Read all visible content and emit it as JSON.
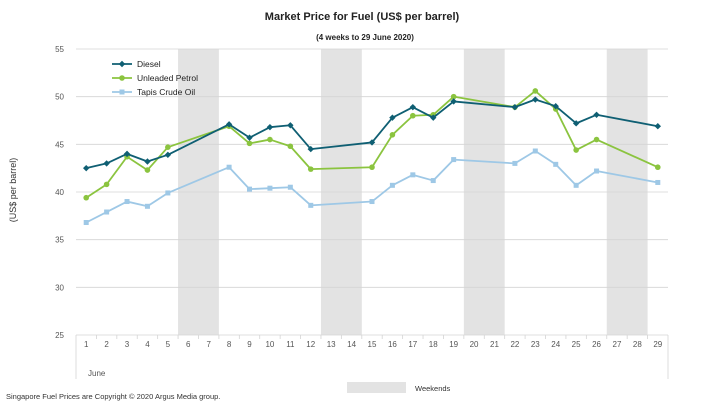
{
  "chart_data": {
    "type": "line",
    "title": "Market Price for Fuel (US$  per barrel)",
    "subtitle": "(4 weeks to 29 June 2020)",
    "ylabel": "(US$ per barrel)",
    "xlabel": "June",
    "ylim": [
      25,
      55
    ],
    "yticks": [
      25,
      30,
      35,
      40,
      45,
      50,
      55
    ],
    "categories": [
      "1",
      "2",
      "3",
      "4",
      "5",
      "6",
      "7",
      "8",
      "9",
      "10",
      "11",
      "12",
      "13",
      "14",
      "15",
      "16",
      "17",
      "18",
      "19",
      "20",
      "21",
      "22",
      "23",
      "24",
      "25",
      "26",
      "27",
      "28",
      "29"
    ],
    "weekends": [
      [
        6,
        7
      ],
      [
        13,
        14
      ],
      [
        20,
        21
      ],
      [
        27,
        28
      ]
    ],
    "weekend_label": "Weekends",
    "weekend_color": "#e3e3e3",
    "series": [
      {
        "name": "Diesel",
        "color": "#0f5f73",
        "marker": "diamond",
        "points": [
          [
            1,
            42.5
          ],
          [
            2,
            43.0
          ],
          [
            3,
            44.0
          ],
          [
            4,
            43.2
          ],
          [
            5,
            43.9
          ],
          [
            8,
            47.1
          ],
          [
            9,
            45.7
          ],
          [
            10,
            46.8
          ],
          [
            11,
            47.0
          ],
          [
            12,
            44.5
          ],
          [
            15,
            45.2
          ],
          [
            16,
            47.8
          ],
          [
            17,
            48.9
          ],
          [
            18,
            47.8
          ],
          [
            19,
            49.5
          ],
          [
            22,
            48.9
          ],
          [
            23,
            49.7
          ],
          [
            24,
            49.0
          ],
          [
            25,
            47.2
          ],
          [
            26,
            48.1
          ],
          [
            29,
            46.9
          ]
        ]
      },
      {
        "name": "Unleaded Petrol",
        "color": "#8bc43f",
        "marker": "circle",
        "points": [
          [
            1,
            39.4
          ],
          [
            2,
            40.8
          ],
          [
            3,
            43.7
          ],
          [
            4,
            42.3
          ],
          [
            5,
            44.7
          ],
          [
            8,
            46.9
          ],
          [
            9,
            45.1
          ],
          [
            10,
            45.5
          ],
          [
            11,
            44.8
          ],
          [
            12,
            42.4
          ],
          [
            15,
            42.6
          ],
          [
            16,
            46.0
          ],
          [
            17,
            48.0
          ],
          [
            18,
            48.1
          ],
          [
            19,
            50.0
          ],
          [
            22,
            48.9
          ],
          [
            23,
            50.6
          ],
          [
            24,
            48.7
          ],
          [
            25,
            44.4
          ],
          [
            26,
            45.5
          ],
          [
            29,
            42.6
          ]
        ]
      },
      {
        "name": "Tapis Crude Oil",
        "color": "#9ec8e6",
        "marker": "square",
        "points": [
          [
            1,
            36.8
          ],
          [
            2,
            37.9
          ],
          [
            3,
            39.0
          ],
          [
            4,
            38.5
          ],
          [
            5,
            39.9
          ],
          [
            8,
            42.6
          ],
          [
            9,
            40.3
          ],
          [
            10,
            40.4
          ],
          [
            11,
            40.5
          ],
          [
            12,
            38.6
          ],
          [
            15,
            39.0
          ],
          [
            16,
            40.7
          ],
          [
            17,
            41.8
          ],
          [
            18,
            41.2
          ],
          [
            19,
            43.4
          ],
          [
            22,
            43.0
          ],
          [
            23,
            44.3
          ],
          [
            24,
            42.9
          ],
          [
            25,
            40.7
          ],
          [
            26,
            42.2
          ],
          [
            29,
            41.0
          ]
        ]
      }
    ],
    "legend_position": "top-left",
    "gridlines": true
  },
  "footer": {
    "copyright": "Singapore  Fuel Prices are Copyright © 2020  Argus Media group."
  }
}
